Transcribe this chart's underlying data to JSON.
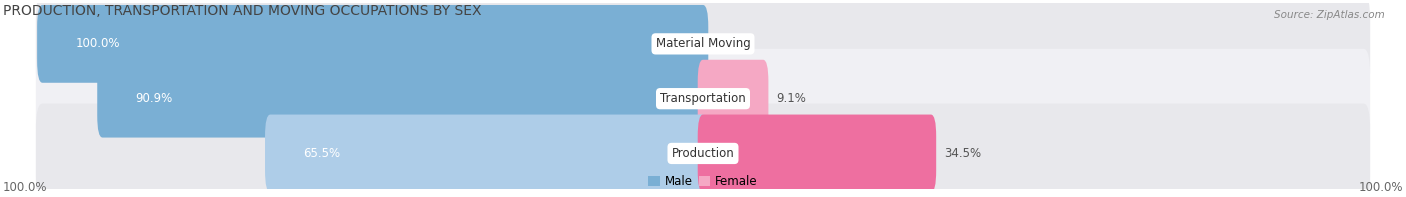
{
  "title": "PRODUCTION, TRANSPORTATION AND MOVING OCCUPATIONS BY SEX",
  "source": "Source: ZipAtlas.com",
  "categories": [
    "Material Moving",
    "Transportation",
    "Production"
  ],
  "male_values": [
    100.0,
    90.9,
    65.5
  ],
  "female_values": [
    0.0,
    9.1,
    34.5
  ],
  "male_color_strong": "#7AAFD4",
  "male_color_light": "#AECDE8",
  "female_color_light": "#F5A8C4",
  "female_color_dark": "#EE6FA0",
  "row_bg_color_dark": "#E8E8EC",
  "row_bg_color_light": "#F0F0F4",
  "male_label": "Male",
  "female_label": "Female",
  "axis_label_left": "100.0%",
  "axis_label_right": "100.0%",
  "title_fontsize": 10,
  "label_fontsize": 8.5,
  "pct_fontsize": 8.5,
  "tick_fontsize": 8.5,
  "source_fontsize": 7.5
}
